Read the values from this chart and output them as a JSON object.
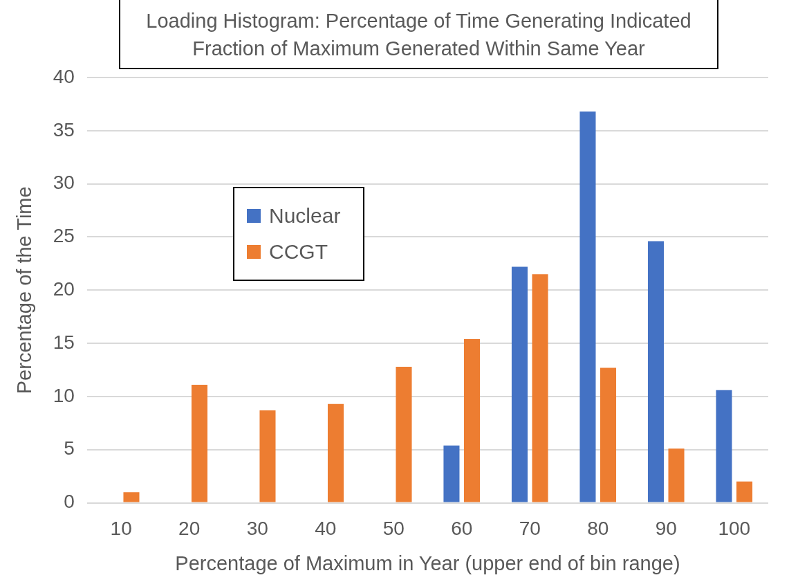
{
  "chart_data": {
    "type": "bar",
    "title": "Loading Histogram: Percentage of Time Generating Indicated Fraction of Maximum Generated Within Same Year",
    "xlabel": "Percentage of Maximum in Year (upper end of bin range)",
    "ylabel": "Percentage of the Time",
    "categories": [
      "10",
      "20",
      "30",
      "40",
      "50",
      "60",
      "70",
      "80",
      "90",
      "100"
    ],
    "series": [
      {
        "name": "Nuclear",
        "color": "#4472c4",
        "values": [
          null,
          null,
          null,
          null,
          null,
          5.4,
          22.2,
          36.8,
          24.6,
          10.6
        ]
      },
      {
        "name": "CCGT",
        "color": "#ed7d31",
        "values": [
          1.0,
          11.1,
          8.7,
          9.3,
          12.8,
          15.4,
          21.5,
          12.7,
          5.1,
          2.0
        ]
      }
    ],
    "ylim": [
      0,
      40
    ],
    "yticks": [
      0,
      5,
      10,
      15,
      20,
      25,
      30,
      35,
      40
    ],
    "grid": "y",
    "legend": "top left"
  }
}
